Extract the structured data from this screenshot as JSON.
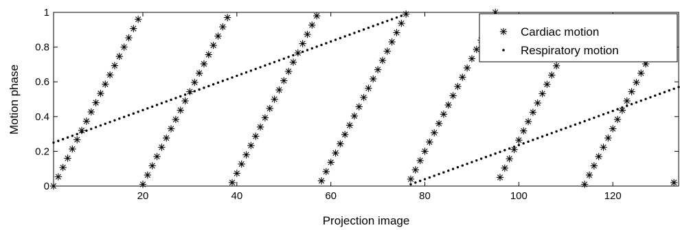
{
  "chart_data": {
    "type": "scatter",
    "title": "",
    "xlabel": "Projection image",
    "ylabel": "Motion phase",
    "xlim": [
      1,
      134
    ],
    "ylim": [
      0,
      1
    ],
    "xticks": [
      20,
      40,
      60,
      80,
      100,
      120
    ],
    "yticks": [
      0,
      0.2,
      0.4,
      0.6,
      0.8,
      1
    ],
    "ytick_labels": [
      "0",
      "0.2",
      "0.4",
      "0.6",
      "0.8",
      "1"
    ],
    "grid": false,
    "legend_position": "top-right",
    "colors": {
      "series": "#000000",
      "background": "#ffffff"
    },
    "series": [
      {
        "name": "Cardiac motion",
        "marker": "asterisk",
        "segments": [
          {
            "x_start": 1,
            "x_end": 19,
            "y_start": 0.0,
            "y_end": 0.96
          },
          {
            "x_start": 20,
            "x_end": 38,
            "y_start": 0.01,
            "y_end": 0.97
          },
          {
            "x_start": 39,
            "x_end": 57,
            "y_start": 0.02,
            "y_end": 0.98
          },
          {
            "x_start": 58,
            "x_end": 76,
            "y_start": 0.03,
            "y_end": 0.99
          },
          {
            "x_start": 77,
            "x_end": 95,
            "y_start": 0.04,
            "y_end": 1.0
          },
          {
            "x_start": 96,
            "x_end": 113,
            "y_start": 0.05,
            "y_end": 0.96
          },
          {
            "x_start": 114,
            "x_end": 132,
            "y_start": 0.01,
            "y_end": 0.97
          },
          {
            "x_start": 133,
            "x_end": 133,
            "y_start": 0.02,
            "y_end": 0.02
          }
        ]
      },
      {
        "name": "Respiratory motion",
        "marker": "dot",
        "segments": [
          {
            "x_start": 1,
            "x_end": 76,
            "y_start": 0.25,
            "y_end": 0.99,
            "count": 76
          },
          {
            "x_start": 77,
            "x_end": 134,
            "y_start": 0.01,
            "y_end": 0.57,
            "count": 58
          }
        ]
      }
    ]
  }
}
